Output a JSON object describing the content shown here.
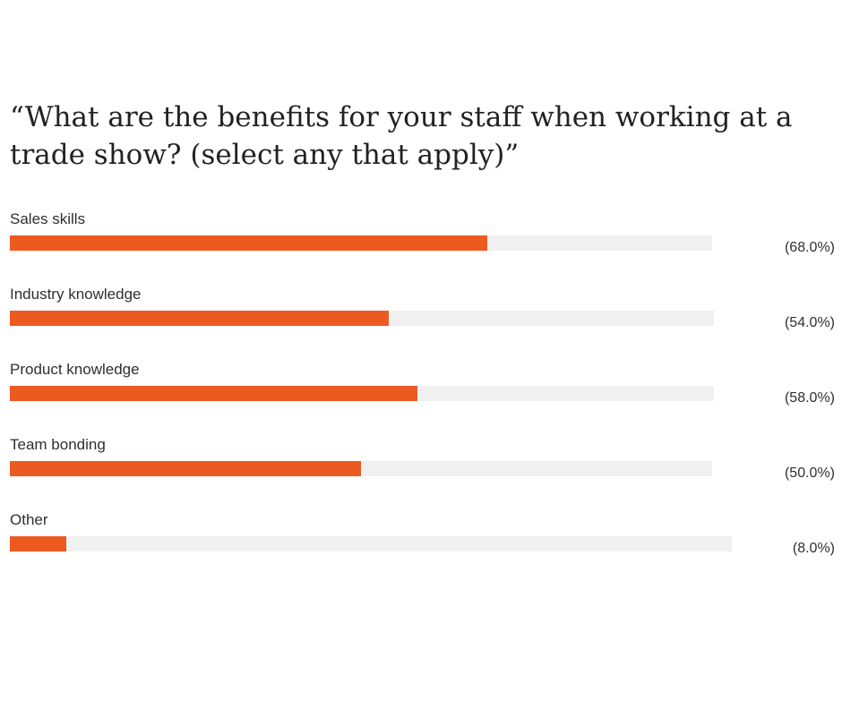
{
  "chart_data": {
    "type": "bar",
    "orientation": "horizontal",
    "title": "“What are the benefits for your staff when working at a trade show? (select any that apply)”",
    "categories": [
      "Sales skills",
      "Industry knowledge",
      "Product knowledge",
      "Team bonding",
      "Other"
    ],
    "values": [
      68.0,
      54.0,
      58.0,
      50.0,
      8.0
    ],
    "value_labels": [
      "(68.0%)",
      "(54.0%)",
      "(58.0%)",
      "(50.0%)",
      "(8.0%)"
    ],
    "xlim": [
      0,
      100
    ],
    "unit": "%",
    "grid": false,
    "legend": "none",
    "colors": {
      "bar_fill": "#ec5a20",
      "bar_track": "#f0f0f0",
      "text": "#2b2b2b"
    }
  }
}
